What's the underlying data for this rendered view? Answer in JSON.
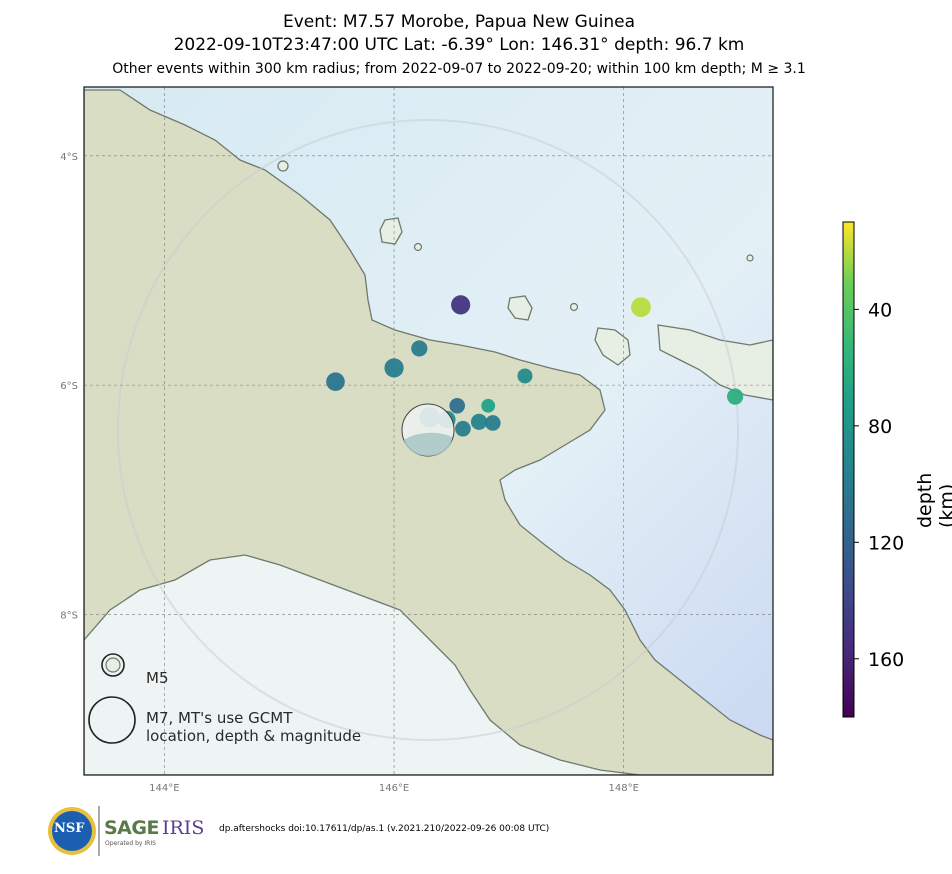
{
  "title": {
    "line1": "Event: M7.57 Morobe, Papua New Guinea",
    "line2": "2022-09-10T23:47:00 UTC Lat: -6.39° Lon: 146.31° depth: 96.7 km",
    "line3": "Other events within 300 km radius; from 2022-09-07 to 2022-09-20; within 100 km depth; M ≥ 3.1"
  },
  "map": {
    "lon_range": [
      143.3,
      149.3
    ],
    "lat_range": [
      -9.4,
      -3.4
    ],
    "lon_ticks": [
      {
        "value": 144,
        "label": "144°E"
      },
      {
        "value": 146,
        "label": "146°E"
      },
      {
        "value": 148,
        "label": "148°E"
      }
    ],
    "lat_ticks": [
      {
        "value": -4,
        "label": "4°S"
      },
      {
        "value": -6,
        "label": "6°S"
      },
      {
        "value": -8,
        "label": "8°S"
      }
    ],
    "radius_km": 300,
    "mainshock": {
      "lon": 146.31,
      "lat": -6.39,
      "depth": 96.7,
      "mag": 7.57
    }
  },
  "events": [
    {
      "lon": 146.58,
      "lat": -5.3,
      "depth": 150,
      "mag": 5.2
    },
    {
      "lon": 148.15,
      "lat": -5.32,
      "depth": 20,
      "mag": 5.3
    },
    {
      "lon": 146.22,
      "lat": -5.68,
      "depth": 100,
      "mag": 4.7
    },
    {
      "lon": 146.0,
      "lat": -5.85,
      "depth": 100,
      "mag": 5.2
    },
    {
      "lon": 145.49,
      "lat": -5.97,
      "depth": 105,
      "mag": 5.1
    },
    {
      "lon": 147.14,
      "lat": -5.92,
      "depth": 88,
      "mag": 4.5
    },
    {
      "lon": 148.97,
      "lat": -6.1,
      "depth": 60,
      "mag": 4.7
    },
    {
      "lon": 146.55,
      "lat": -6.18,
      "depth": 110,
      "mag": 4.6
    },
    {
      "lon": 146.82,
      "lat": -6.18,
      "depth": 70,
      "mag": 4.3
    },
    {
      "lon": 146.31,
      "lat": -6.28,
      "depth": 85,
      "mag": 5.4
    },
    {
      "lon": 146.46,
      "lat": -6.3,
      "depth": 85,
      "mag": 4.9
    },
    {
      "lon": 146.74,
      "lat": -6.32,
      "depth": 95,
      "mag": 4.7
    },
    {
      "lon": 146.86,
      "lat": -6.33,
      "depth": 100,
      "mag": 4.6
    },
    {
      "lon": 146.6,
      "lat": -6.38,
      "depth": 100,
      "mag": 4.6
    }
  ],
  "colorbar": {
    "label": "depth (km)",
    "range": [
      10,
      180
    ],
    "ticks": [
      {
        "value": 40,
        "label": "40"
      },
      {
        "value": 80,
        "label": "80"
      },
      {
        "value": 120,
        "label": "120"
      },
      {
        "value": 160,
        "label": "160"
      }
    ]
  },
  "legend": {
    "m5_label": "M5",
    "m7_line1": "M7, MT's use GCMT",
    "m7_line2": "location, depth & magnitude"
  },
  "footer": {
    "citation": "dp.aftershocks doi:10.17611/dp/as.1 (v.2021.210/2022-09-26 00:08 UTC)",
    "nsf": "NSF",
    "sage": "SAGE",
    "iris": "IRIS",
    "operated": "Operated by IRIS"
  }
}
